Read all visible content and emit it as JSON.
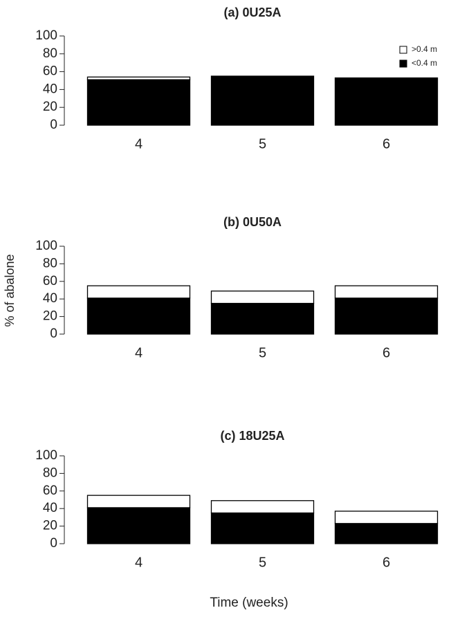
{
  "chart_data": [
    {
      "type": "stacked_bar",
      "title": "(a) 0U25A",
      "categories": [
        "4",
        "5",
        "6"
      ],
      "series": [
        {
          "name": "<0.4 m",
          "color": "#000000",
          "values": [
            51,
            55,
            53
          ]
        },
        {
          "name": ">0.4 m",
          "color": "#ffffff",
          "values": [
            3,
            0,
            0
          ]
        }
      ],
      "ylim": [
        0,
        100
      ],
      "yticks": [
        0,
        20,
        40,
        60,
        80,
        100
      ],
      "legend": "top-right"
    },
    {
      "type": "stacked_bar",
      "title": "(b) 0U50A",
      "ylabel": "% of abalone",
      "categories": [
        "4",
        "5",
        "6"
      ],
      "series": [
        {
          "color": "#000000",
          "values": [
            41,
            35,
            41
          ]
        },
        {
          "color": "#ffffff",
          "values": [
            14,
            14,
            14
          ]
        }
      ],
      "ylim": [
        0,
        100
      ],
      "yticks": [
        0,
        20,
        40,
        60,
        80,
        100
      ]
    },
    {
      "type": "stacked_bar",
      "title": "(c) 18U25A",
      "xlabel": "Time (weeks)",
      "categories": [
        "4",
        "5",
        "6"
      ],
      "series": [
        {
          "color": "#000000",
          "values": [
            41,
            35,
            23
          ]
        },
        {
          "color": "#ffffff",
          "values": [
            14,
            14,
            14
          ]
        }
      ],
      "ylim": [
        0,
        100
      ],
      "yticks": [
        0,
        20,
        40,
        60,
        80,
        100
      ]
    }
  ]
}
